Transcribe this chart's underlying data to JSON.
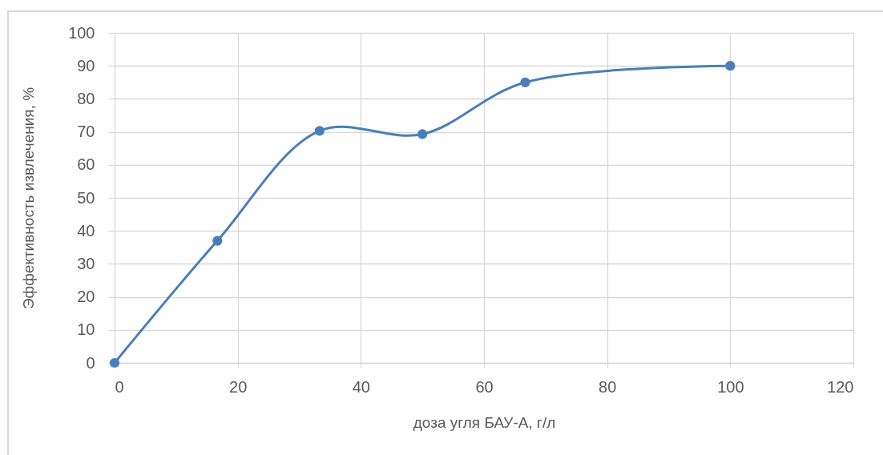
{
  "chart_data": {
    "type": "line",
    "xlabel": "доза угля БАУ-А, г/л",
    "ylabel": "Эффективность извлечения, %",
    "x": [
      0,
      16.7,
      33.3,
      50,
      66.7,
      100
    ],
    "series": [
      {
        "color": "#4a7ebb",
        "values": [
          0,
          37,
          70.3,
          69.3,
          85,
          90
        ]
      }
    ],
    "xlim": [
      0,
      120
    ],
    "xticks": [
      0,
      20,
      40,
      60,
      80,
      100,
      120
    ],
    "ylim": [
      0,
      100
    ],
    "yticks": [
      0,
      10,
      20,
      30,
      40,
      50,
      60,
      70,
      80,
      90,
      100
    ],
    "grid": true,
    "marker": "circle",
    "line_style": "solid"
  }
}
